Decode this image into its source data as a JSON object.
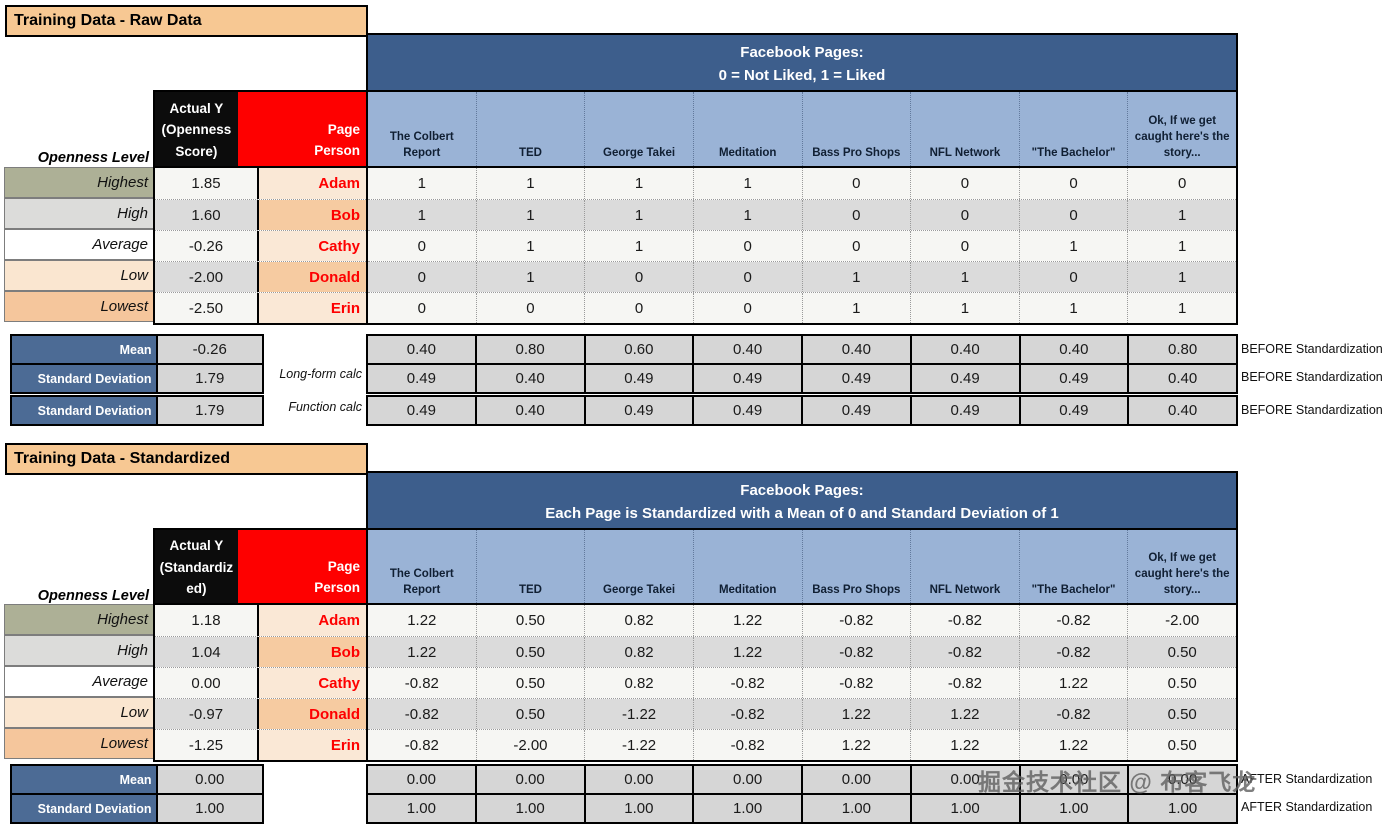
{
  "watermark": "掘金技术社区 @ 布客飞龙",
  "colors": {
    "title_peach": "#F7C893",
    "dark_blue": "#3D5E8C",
    "light_blue": "#9AB3D6",
    "label_blue": "#4C6B95",
    "header_black": "#0C0C0C",
    "header_red": "#FE0000",
    "name_red": "#FF0000",
    "olive": "#ADB096",
    "row_gray": "#DBDBDB",
    "peach_row": "#F6CBA1",
    "light_peach_row": "#FAE8D6",
    "low_peach": "#FAE6D0",
    "lowest_peach": "#F5C69C",
    "summary_gray": "#D6D6D6"
  },
  "table1": {
    "title": "Training Data - Raw Data",
    "fb_header": {
      "line1": "Facebook Pages:",
      "line2": "0 = Not Liked, 1 = Liked"
    },
    "openness_label": "Openness Level",
    "y_header": "Actual  Y (Openness Score)",
    "person_header": "Page Person",
    "page_columns": [
      "The Colbert Report",
      "TED",
      "George Takei",
      "Meditation",
      "Bass Pro Shops",
      "NFL Network",
      "\"The Bachelor\"",
      "Ok, If we get caught here's the story..."
    ],
    "rows": [
      {
        "level": "Highest",
        "y": "1.85",
        "person": "Adam",
        "likes": [
          "1",
          "1",
          "1",
          "1",
          "0",
          "0",
          "0",
          "0"
        ]
      },
      {
        "level": "High",
        "y": "1.60",
        "person": "Bob",
        "likes": [
          "1",
          "1",
          "1",
          "1",
          "0",
          "0",
          "0",
          "1"
        ]
      },
      {
        "level": "Average",
        "y": "-0.26",
        "person": "Cathy",
        "likes": [
          "0",
          "1",
          "1",
          "0",
          "0",
          "0",
          "1",
          "1"
        ]
      },
      {
        "level": "Low",
        "y": "-2.00",
        "person": "Donald",
        "likes": [
          "0",
          "1",
          "0",
          "0",
          "1",
          "1",
          "0",
          "1"
        ]
      },
      {
        "level": "Lowest",
        "y": "-2.50",
        "person": "Erin",
        "likes": [
          "0",
          "0",
          "0",
          "0",
          "1",
          "1",
          "1",
          "1"
        ]
      }
    ],
    "summary_rows": [
      {
        "label": "Mean",
        "y": "-0.26",
        "values": [
          "0.40",
          "0.80",
          "0.60",
          "0.40",
          "0.40",
          "0.40",
          "0.40",
          "0.80"
        ],
        "note": "BEFORE Standardization"
      },
      {
        "label": "Standard Deviation",
        "y": "1.79",
        "calc": "Long-form calc",
        "values": [
          "0.49",
          "0.40",
          "0.49",
          "0.49",
          "0.49",
          "0.49",
          "0.49",
          "0.40"
        ],
        "note": "BEFORE Standardization"
      },
      {
        "label": "Standard Deviation",
        "y": "1.79",
        "calc": "Function calc",
        "values": [
          "0.49",
          "0.40",
          "0.49",
          "0.49",
          "0.49",
          "0.49",
          "0.49",
          "0.40"
        ],
        "note": "BEFORE Standardization"
      }
    ]
  },
  "table2": {
    "title": "Training Data - Standardized",
    "fb_header": {
      "line1": "Facebook Pages:",
      "line2": "Each Page is Standardized with a Mean of 0 and Standard Deviation of 1"
    },
    "openness_label": "Openness Level",
    "y_header": "Actual  Y (Standardized)",
    "person_header": "Page Person",
    "page_columns": [
      "The Colbert Report",
      "TED",
      "George Takei",
      "Meditation",
      "Bass Pro Shops",
      "NFL Network",
      "\"The Bachelor\"",
      "Ok, If we get caught here's the story..."
    ],
    "rows": [
      {
        "level": "Highest",
        "y": "1.18",
        "person": "Adam",
        "likes": [
          "1.22",
          "0.50",
          "0.82",
          "1.22",
          "-0.82",
          "-0.82",
          "-0.82",
          "-2.00"
        ]
      },
      {
        "level": "High",
        "y": "1.04",
        "person": "Bob",
        "likes": [
          "1.22",
          "0.50",
          "0.82",
          "1.22",
          "-0.82",
          "-0.82",
          "-0.82",
          "0.50"
        ]
      },
      {
        "level": "Average",
        "y": "0.00",
        "person": "Cathy",
        "likes": [
          "-0.82",
          "0.50",
          "0.82",
          "-0.82",
          "-0.82",
          "-0.82",
          "1.22",
          "0.50"
        ]
      },
      {
        "level": "Low",
        "y": "-0.97",
        "person": "Donald",
        "likes": [
          "-0.82",
          "0.50",
          "-1.22",
          "-0.82",
          "1.22",
          "1.22",
          "-0.82",
          "0.50"
        ]
      },
      {
        "level": "Lowest",
        "y": "-1.25",
        "person": "Erin",
        "likes": [
          "-0.82",
          "-2.00",
          "-1.22",
          "-0.82",
          "1.22",
          "1.22",
          "1.22",
          "0.50"
        ]
      }
    ],
    "summary_rows": [
      {
        "label": "Mean",
        "y": "0.00",
        "values": [
          "0.00",
          "0.00",
          "0.00",
          "0.00",
          "0.00",
          "0.00",
          "0.00",
          "0.00"
        ],
        "note": "AFTER Standardization"
      },
      {
        "label": "Standard Deviation",
        "y": "1.00",
        "values": [
          "1.00",
          "1.00",
          "1.00",
          "1.00",
          "1.00",
          "1.00",
          "1.00",
          "1.00"
        ],
        "note": "AFTER Standardization"
      }
    ]
  }
}
